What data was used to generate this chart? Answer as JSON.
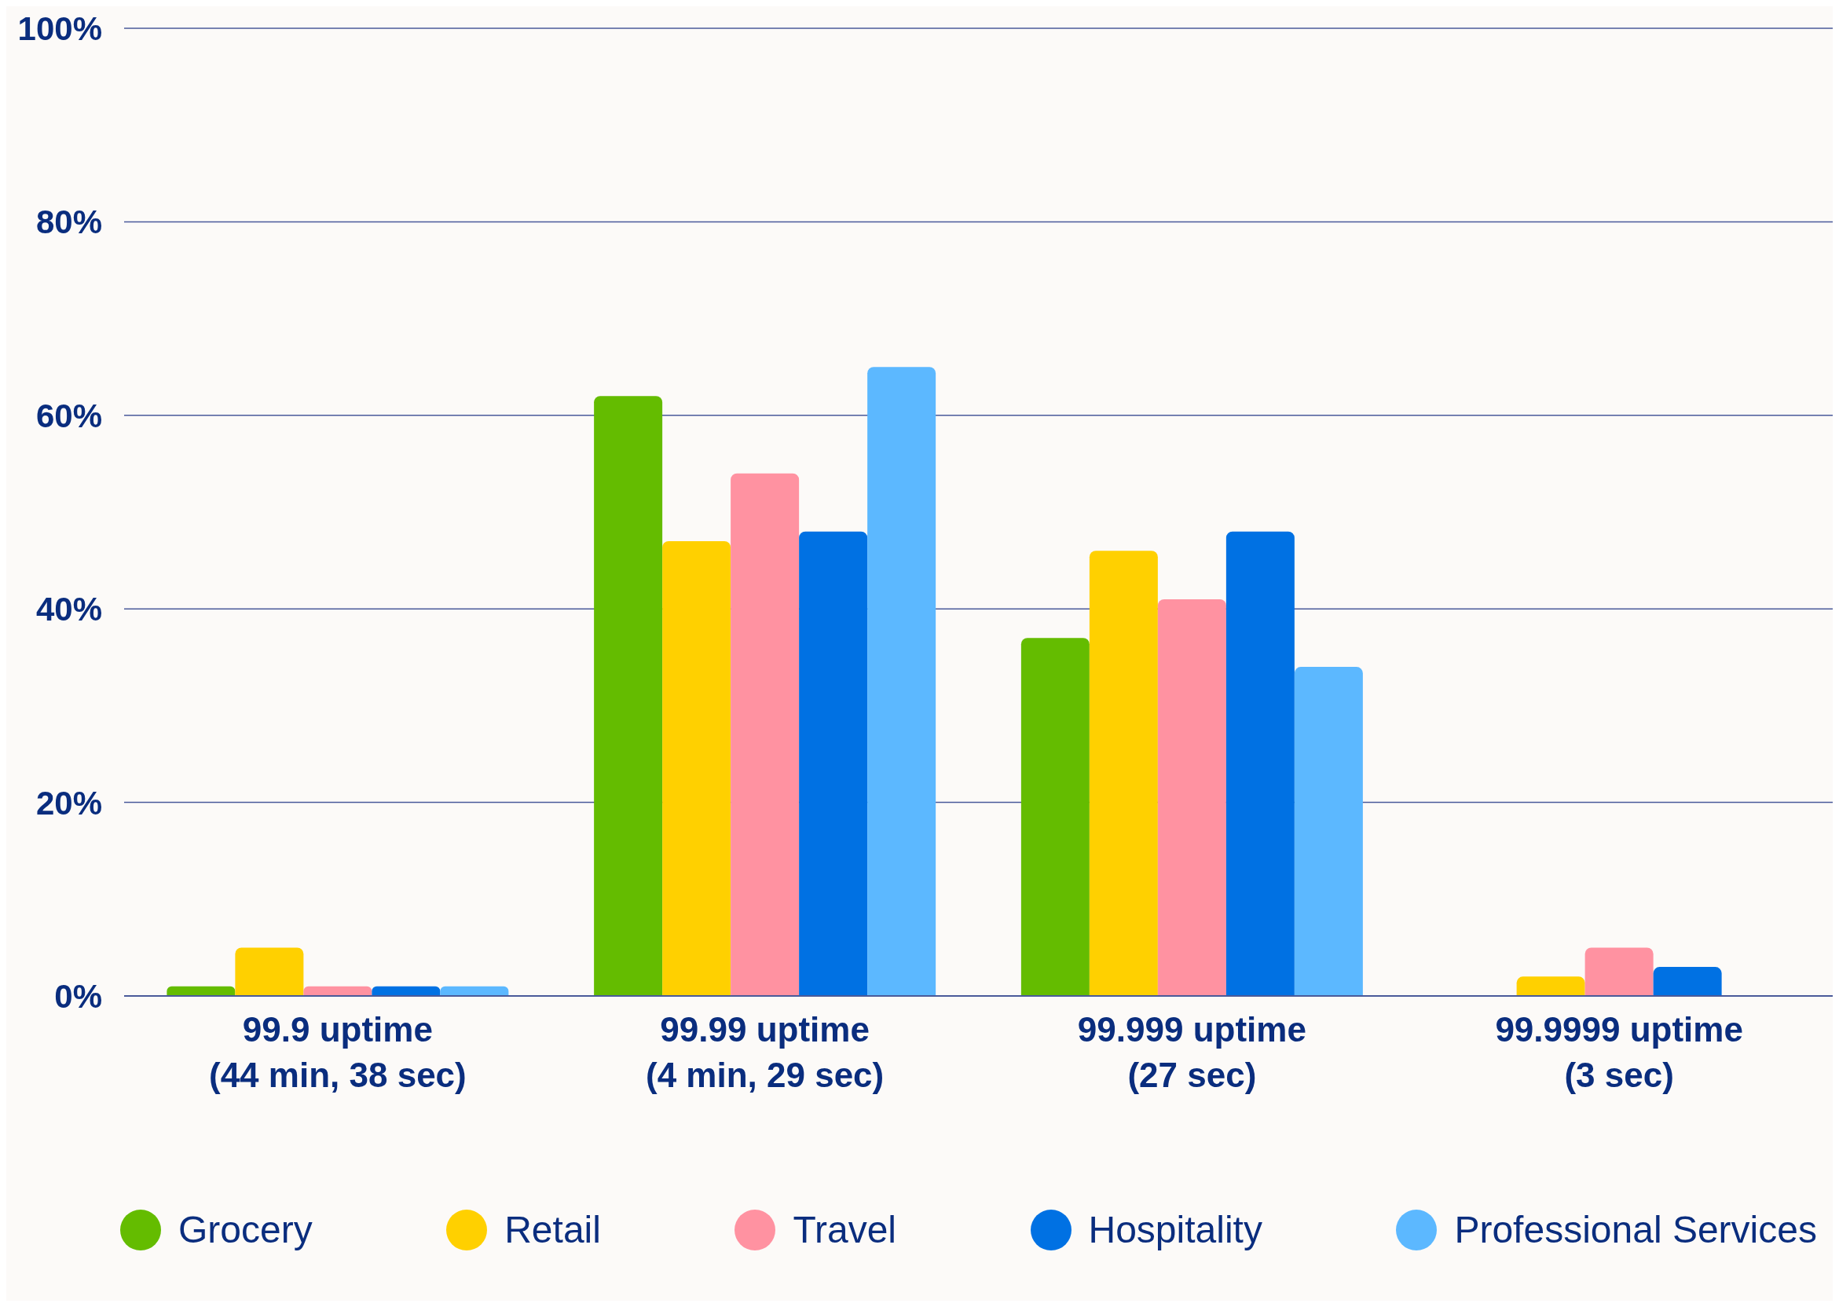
{
  "chart_data": {
    "type": "bar",
    "categories": [
      "99.9 uptime\n(44 min, 38 sec)",
      "99.99 uptime\n(4 min, 29 sec)",
      "99.999 uptime\n(27 sec)",
      "99.9999 uptime\n(3 sec)"
    ],
    "series": [
      {
        "name": "Grocery",
        "color": "#64bc00",
        "values": [
          1,
          62,
          37,
          0
        ]
      },
      {
        "name": "Retail",
        "color": "#ffd000",
        "values": [
          5,
          47,
          46,
          2
        ]
      },
      {
        "name": "Travel",
        "color": "#ff92a1",
        "values": [
          1,
          54,
          41,
          5
        ]
      },
      {
        "name": "Hospitality",
        "color": "#0071e3",
        "values": [
          1,
          48,
          48,
          3
        ]
      },
      {
        "name": "Professional Services",
        "color": "#5cb8ff",
        "values": [
          1,
          65,
          34,
          0
        ]
      }
    ],
    "ylim": [
      0,
      100
    ],
    "yticks": [
      {
        "value": 0,
        "label": "0%"
      },
      {
        "value": 20,
        "label": "20%"
      },
      {
        "value": 40,
        "label": "40%"
      },
      {
        "value": 60,
        "label": "60%"
      },
      {
        "value": 80,
        "label": "80%"
      },
      {
        "value": 100,
        "label": "100%"
      }
    ],
    "grid": "y",
    "legend": "bottom"
  }
}
